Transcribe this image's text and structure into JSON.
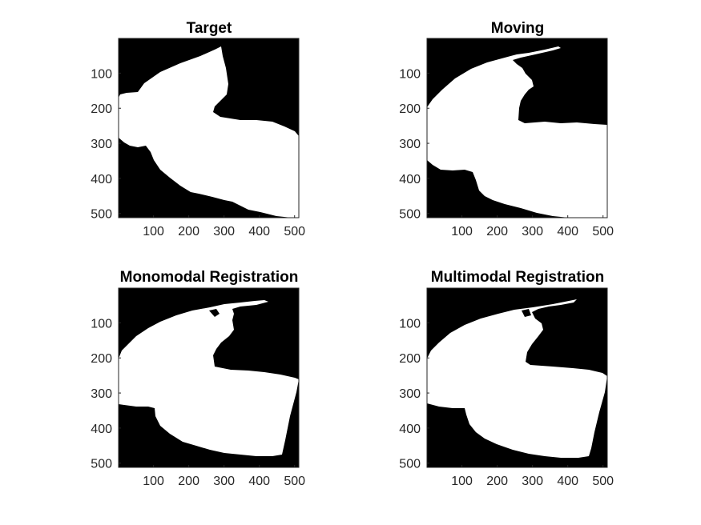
{
  "figure": {
    "background": "#ffffff",
    "image_background": "#000000",
    "mask_color": "#ffffff",
    "panels": [
      {
        "title": "Target",
        "x_ticks": [
          "100",
          "200",
          "300",
          "400",
          "500"
        ],
        "y_ticks": [
          "100",
          "200",
          "300",
          "400",
          "500"
        ]
      },
      {
        "title": "Moving",
        "x_ticks": [
          "100",
          "200",
          "300",
          "400",
          "500"
        ],
        "y_ticks": [
          "100",
          "200",
          "300",
          "400",
          "500"
        ]
      },
      {
        "title": "Monomodal Registration",
        "x_ticks": [
          "100",
          "200",
          "300",
          "400",
          "500"
        ],
        "y_ticks": [
          "100",
          "200",
          "300",
          "400",
          "500"
        ]
      },
      {
        "title": "Multimodal Registration",
        "x_ticks": [
          "100",
          "200",
          "300",
          "400",
          "500"
        ],
        "y_ticks": [
          "100",
          "200",
          "300",
          "400",
          "500"
        ]
      }
    ],
    "axis_range": [
      1,
      512
    ],
    "tick_values": [
      100,
      200,
      300,
      400,
      500
    ]
  }
}
